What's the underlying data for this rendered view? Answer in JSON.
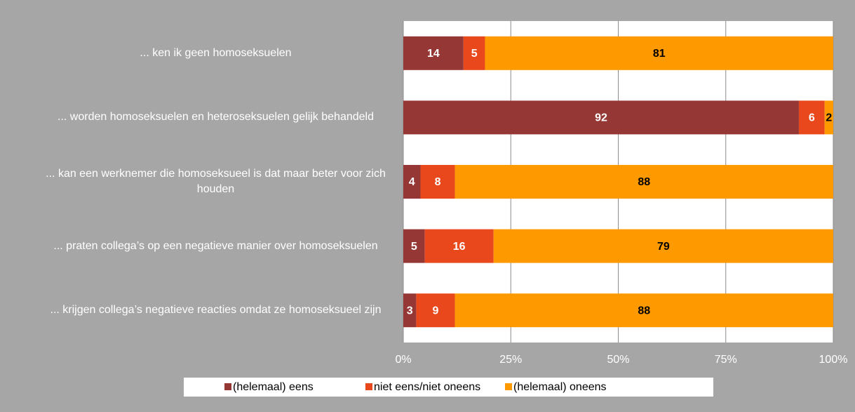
{
  "chart_data": {
    "type": "stacked-bar-horizontal",
    "categories": [
      "... ken ik geen homoseksuelen",
      "... worden homoseksuelen en heteroseksuelen gelijk behandeld",
      "... kan een werknemer die homoseksueel is dat maar beter voor zich houden",
      "... praten collega’s op een negatieve manier over homoseksuelen",
      "... krijgen collega’s negatieve reacties omdat ze homoseksueel zijn"
    ],
    "series": [
      {
        "name": "(helemaal) eens",
        "color": "#953735",
        "label_color": "#ffffff",
        "values": [
          14,
          92,
          4,
          5,
          3
        ]
      },
      {
        "name": "niet eens/niet oneens",
        "color": "#e9471c",
        "label_color": "#ffffff",
        "values": [
          5,
          6,
          8,
          16,
          9
        ]
      },
      {
        "name": "(helemaal) oneens",
        "color": "#ff9900",
        "label_color": "#000000",
        "values": [
          81,
          2,
          88,
          79,
          88
        ]
      }
    ],
    "xlim": [
      0,
      100
    ],
    "xticks": [
      {
        "value": 0,
        "label": "0%"
      },
      {
        "value": 25,
        "label": "25%"
      },
      {
        "value": 50,
        "label": "50%"
      },
      {
        "value": 75,
        "label": "75%"
      },
      {
        "value": 100,
        "label": "100%"
      }
    ],
    "grid": true,
    "legend": "bottom"
  }
}
